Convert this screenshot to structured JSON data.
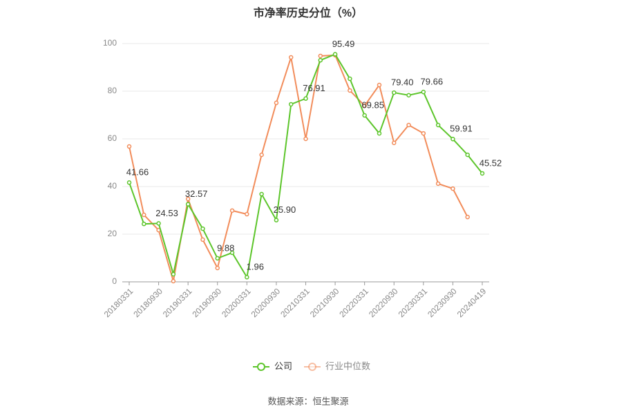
{
  "chart_data": {
    "type": "line",
    "title": "市净率历史分位（%）",
    "source": "数据来源：恒生聚源",
    "categories": [
      "20180331",
      null,
      "20180930",
      null,
      "20190331",
      null,
      "20190930",
      null,
      "20200331",
      null,
      "20200930",
      null,
      "20210331",
      null,
      "20210930",
      null,
      "20220331",
      null,
      "20220930",
      null,
      "20230331",
      null,
      "20230930",
      null,
      "20240419"
    ],
    "series": [
      {
        "name": "公司",
        "color": "#5cc52a",
        "values": [
          41.66,
          24.3,
          24.53,
          3.2,
          32.57,
          22.3,
          9.88,
          12.2,
          1.96,
          36.8,
          25.9,
          74.5,
          76.91,
          93.0,
          95.49,
          85.2,
          69.85,
          62.3,
          79.4,
          78.3,
          79.66,
          65.8,
          59.91,
          53.3,
          45.52
        ],
        "value_labels": [
          "41.66",
          null,
          "24.53",
          null,
          "32.57",
          null,
          "9.88",
          null,
          "1.96",
          null,
          "25.90",
          null,
          "76.91",
          null,
          "95.49",
          null,
          "69.85",
          null,
          "79.40",
          null,
          "79.66",
          null,
          "59.91",
          null,
          "45.52"
        ]
      },
      {
        "name": "行业中位数",
        "color": "#f28c5a",
        "values": [
          56.8,
          28.1,
          21.7,
          0.3,
          34.8,
          17.7,
          5.8,
          29.9,
          28.4,
          53.3,
          75.1,
          94.2,
          60.0,
          94.8,
          95.1,
          80.3,
          73.9,
          82.6,
          58.3,
          65.8,
          62.3,
          41.2,
          39.1,
          27.2,
          null
        ]
      }
    ],
    "ylim": [
      0,
      100
    ],
    "yticks": [
      0,
      20,
      40,
      60,
      80,
      100
    ],
    "grid": true
  }
}
